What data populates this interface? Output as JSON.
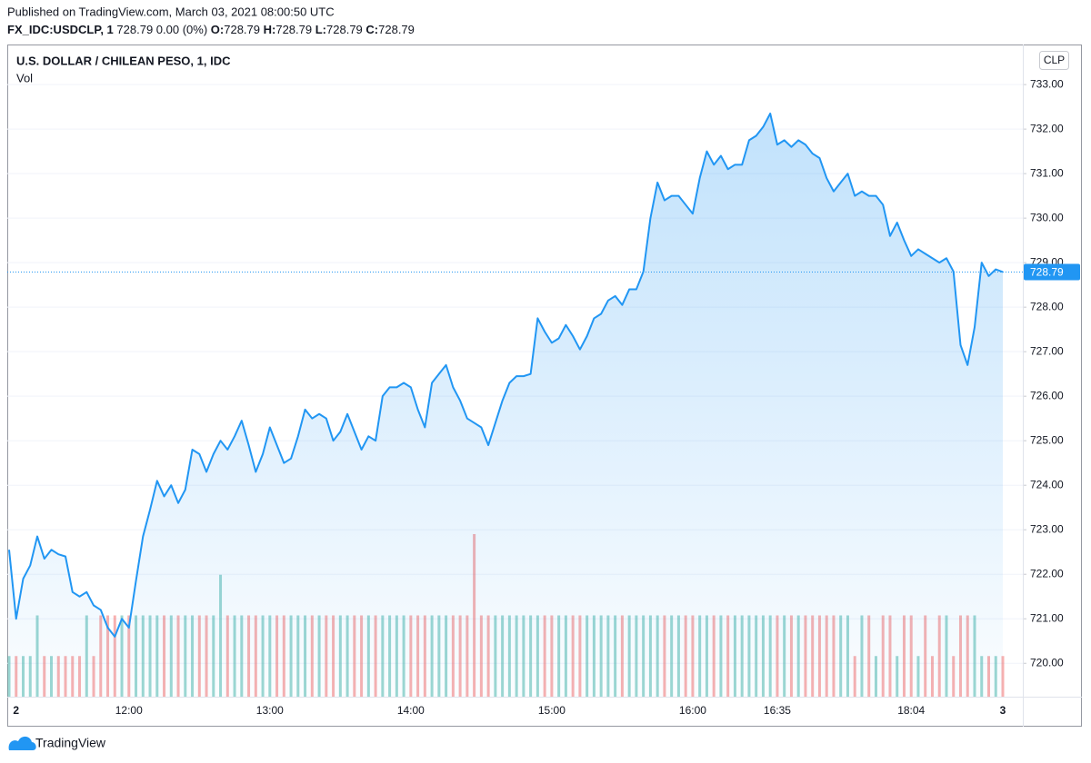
{
  "header": {
    "published": "Published on TradingView.com, March 03, 2021 08:00:50 UTC",
    "symbol": "FX_IDC:USDCLP, 1",
    "change": "728.79 0.00 (0%)",
    "ohlc": [
      {
        "label": "O:",
        "value": "728.79"
      },
      {
        "label": "H:",
        "value": "728.79"
      },
      {
        "label": "L:",
        "value": "728.79"
      },
      {
        "label": "C:",
        "value": "728.79"
      }
    ],
    "brand": "TradingView"
  },
  "chart_data": {
    "type": "area",
    "title": "U.S. DOLLAR / CHILEAN PESO, 1, IDC",
    "currency": "CLP",
    "color": "#2196f3",
    "categories": [
      null,
      "2",
      null,
      null,
      null,
      null,
      null,
      null,
      null,
      null,
      null,
      null,
      null,
      null,
      null,
      null,
      null,
      "12:00",
      null,
      null,
      null,
      null,
      null,
      null,
      null,
      null,
      null,
      null,
      null,
      null,
      null,
      null,
      null,
      null,
      null,
      null,
      null,
      "13:00",
      null,
      null,
      null,
      null,
      null,
      null,
      null,
      null,
      null,
      null,
      null,
      null,
      null,
      null,
      null,
      null,
      null,
      null,
      null,
      "14:00",
      null,
      null,
      null,
      null,
      null,
      null,
      null,
      null,
      null,
      null,
      null,
      null,
      null,
      null,
      null,
      null,
      null,
      null,
      null,
      "15:00",
      null,
      null,
      null,
      null,
      null,
      null,
      null,
      null,
      null,
      null,
      null,
      null,
      null,
      null,
      null,
      null,
      null,
      null,
      null,
      "16:00",
      null,
      null,
      null,
      null,
      null,
      null,
      null,
      null,
      null,
      null,
      null,
      "16:35",
      null,
      null,
      null,
      null,
      null,
      null,
      null,
      null,
      null,
      null,
      null,
      null,
      null,
      null,
      null,
      null,
      null,
      null,
      "18:04",
      null,
      null,
      null,
      null,
      null,
      null,
      null,
      null,
      null,
      null,
      null,
      null,
      "3"
    ],
    "values": [
      722.55,
      721.0,
      721.9,
      722.2,
      722.85,
      722.35,
      722.55,
      722.45,
      722.4,
      721.6,
      721.5,
      721.6,
      721.3,
      721.2,
      720.8,
      720.6,
      721.0,
      720.8,
      721.85,
      722.85,
      723.45,
      724.1,
      723.75,
      724.0,
      723.6,
      723.9,
      724.8,
      724.7,
      724.3,
      724.7,
      725.0,
      724.8,
      725.1,
      725.45,
      724.9,
      724.3,
      724.7,
      725.3,
      724.9,
      724.5,
      724.6,
      725.1,
      725.7,
      725.5,
      725.6,
      725.5,
      725.0,
      725.2,
      725.6,
      725.2,
      724.8,
      725.1,
      725.0,
      726.0,
      726.2,
      726.2,
      726.3,
      726.2,
      725.7,
      725.3,
      726.3,
      726.5,
      726.7,
      726.2,
      725.9,
      725.5,
      725.4,
      725.3,
      724.9,
      725.4,
      725.9,
      726.3,
      726.45,
      726.45,
      726.5,
      727.75,
      727.45,
      727.2,
      727.3,
      727.6,
      727.35,
      727.05,
      727.35,
      727.75,
      727.85,
      728.15,
      728.25,
      728.05,
      728.4,
      728.4,
      728.8,
      730.0,
      730.8,
      730.4,
      730.5,
      730.5,
      730.3,
      730.1,
      730.9,
      731.5,
      731.2,
      731.4,
      731.1,
      731.2,
      731.2,
      731.75,
      731.85,
      732.05,
      732.35,
      731.65,
      731.75,
      731.6,
      731.75,
      731.65,
      731.45,
      731.35,
      730.9,
      730.6,
      730.8,
      731.0,
      730.5,
      730.6,
      730.5,
      730.5,
      730.3,
      729.6,
      729.9,
      729.5,
      729.15,
      729.3,
      729.2,
      729.1,
      729.0,
      729.1,
      728.8,
      727.15,
      726.7,
      727.55,
      729.0,
      728.7,
      728.85,
      728.79
    ],
    "volume": {
      "name": "Vol",
      "up_color": "#26a69a",
      "down_color": "#ef5350",
      "values": [
        1,
        1,
        1,
        1,
        2,
        1,
        1,
        1,
        1,
        1,
        1,
        2,
        1,
        2,
        2,
        2,
        2,
        2,
        2,
        2,
        2,
        2,
        2,
        2,
        2,
        2,
        2,
        2,
        2,
        2,
        3,
        2,
        2,
        2,
        2,
        2,
        2,
        2,
        2,
        2,
        2,
        2,
        2,
        2,
        2,
        2,
        2,
        2,
        2,
        2,
        2,
        2,
        2,
        2,
        2,
        2,
        2,
        2,
        2,
        2,
        2,
        2,
        2,
        2,
        2,
        2,
        4,
        2,
        2,
        2,
        2,
        2,
        2,
        2,
        2,
        2,
        2,
        2,
        2,
        2,
        2,
        2,
        2,
        2,
        2,
        2,
        2,
        2,
        2,
        2,
        2,
        2,
        2,
        2,
        2,
        2,
        2,
        2,
        2,
        2,
        2,
        2,
        2,
        2,
        2,
        2,
        2,
        2,
        2,
        2,
        2,
        2,
        2,
        2,
        2,
        2,
        2,
        2,
        2,
        2,
        1,
        2,
        2,
        1,
        2,
        2,
        1,
        2,
        2,
        1,
        2,
        1,
        2,
        2,
        1,
        2,
        2,
        2,
        1,
        1,
        1,
        1
      ]
    },
    "ylim": [
      719.25,
      733.9
    ],
    "yticks": [
      {
        "value": 720,
        "label": "720.00"
      },
      {
        "value": 721,
        "label": "721.00"
      },
      {
        "value": 722,
        "label": "722.00"
      },
      {
        "value": 723,
        "label": "723.00"
      },
      {
        "value": 724,
        "label": "724.00"
      },
      {
        "value": 725,
        "label": "725.00"
      },
      {
        "value": 726,
        "label": "726.00"
      },
      {
        "value": 727,
        "label": "727.00"
      },
      {
        "value": 728,
        "label": "728.00"
      },
      {
        "value": 729,
        "label": "729.00"
      },
      {
        "value": 730,
        "label": "730.00"
      },
      {
        "value": 731,
        "label": "731.00"
      },
      {
        "value": 732,
        "label": "732.00"
      },
      {
        "value": 733,
        "label": "733.00"
      }
    ],
    "grid": true
  }
}
